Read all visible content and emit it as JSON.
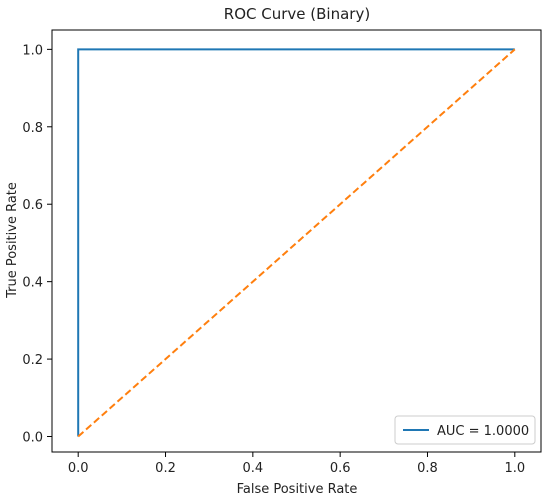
{
  "chart_data": {
    "type": "line",
    "title": "ROC Curve (Binary)",
    "xlabel": "False Positive Rate",
    "ylabel": "True Positive Rate",
    "xlim": [
      -0.06,
      1.06
    ],
    "ylim": [
      -0.04,
      1.05
    ],
    "xticks": [
      "0.0",
      "0.2",
      "0.4",
      "0.6",
      "0.8",
      "1.0"
    ],
    "yticks": [
      "0.0",
      "0.2",
      "0.4",
      "0.6",
      "0.8",
      "1.0"
    ],
    "grid": false,
    "legend_position": "lower-right",
    "series": [
      {
        "name": "AUC = 1.0000",
        "style": "solid",
        "color": "#1f77b4",
        "x": [
          0.0,
          0.0,
          1.0
        ],
        "y": [
          0.0,
          1.0,
          1.0
        ]
      },
      {
        "style": "dashed",
        "color": "#ff7f0e",
        "x": [
          0.0,
          1.0
        ],
        "y": [
          0.0,
          1.0
        ]
      }
    ]
  }
}
